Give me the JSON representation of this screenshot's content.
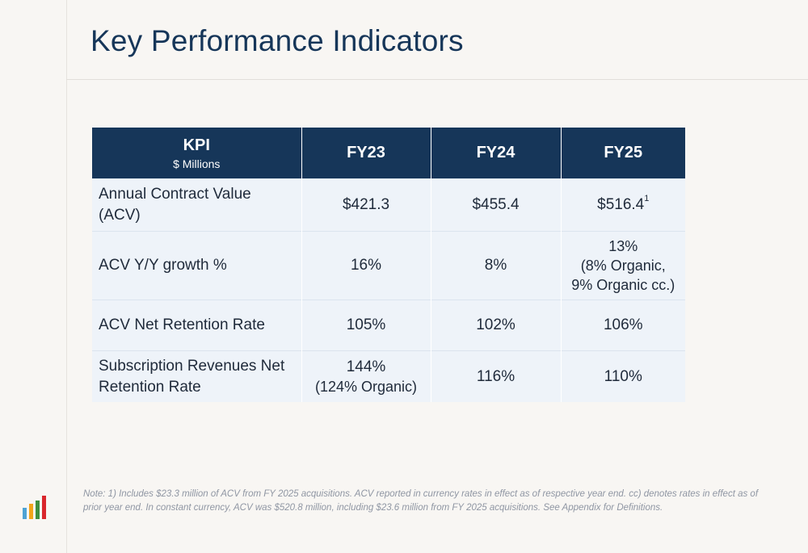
{
  "title": "Key Performance Indicators",
  "table": {
    "header": {
      "kpi": "KPI",
      "kpi_sub": "$ Millions",
      "fy23": "FY23",
      "fy24": "FY24",
      "fy25": "FY25"
    },
    "rows": [
      {
        "label_1": "Annual Contract Value",
        "label_2": "(ACV)",
        "fy23": "$421.3",
        "fy24": "$455.4",
        "fy25": "$516.4",
        "fy25_sup": "1"
      },
      {
        "label": "ACV Y/Y growth %",
        "fy23": "16%",
        "fy24": "8%",
        "fy25_1": "13%",
        "fy25_2": "(8% Organic,",
        "fy25_3": "9% Organic cc.)"
      },
      {
        "label": "ACV Net Retention Rate",
        "fy23": "105%",
        "fy24": "102%",
        "fy25": "106%"
      },
      {
        "label_1": "Subscription Revenues Net",
        "label_2": "Retention Rate",
        "fy23_1": "144%",
        "fy23_2": "(124% Organic)",
        "fy24": "116%",
        "fy25": "110%"
      }
    ]
  },
  "note": "Note: 1) Includes $23.3 million of ACV from FY 2025 acquisitions.  ACV reported in currency rates in effect as of respective year end.  cc) denotes rates in effect as of prior year end. In constant currency, ACV was $520.8 million, including $23.6 million from FY 2025 acquisitions. See Appendix for Definitions.",
  "logo": {
    "icon": "bar-chart-logo-icon",
    "colors": [
      "#4da3d4",
      "#f2a51a",
      "#3f8f3f",
      "#d9262c"
    ]
  }
}
